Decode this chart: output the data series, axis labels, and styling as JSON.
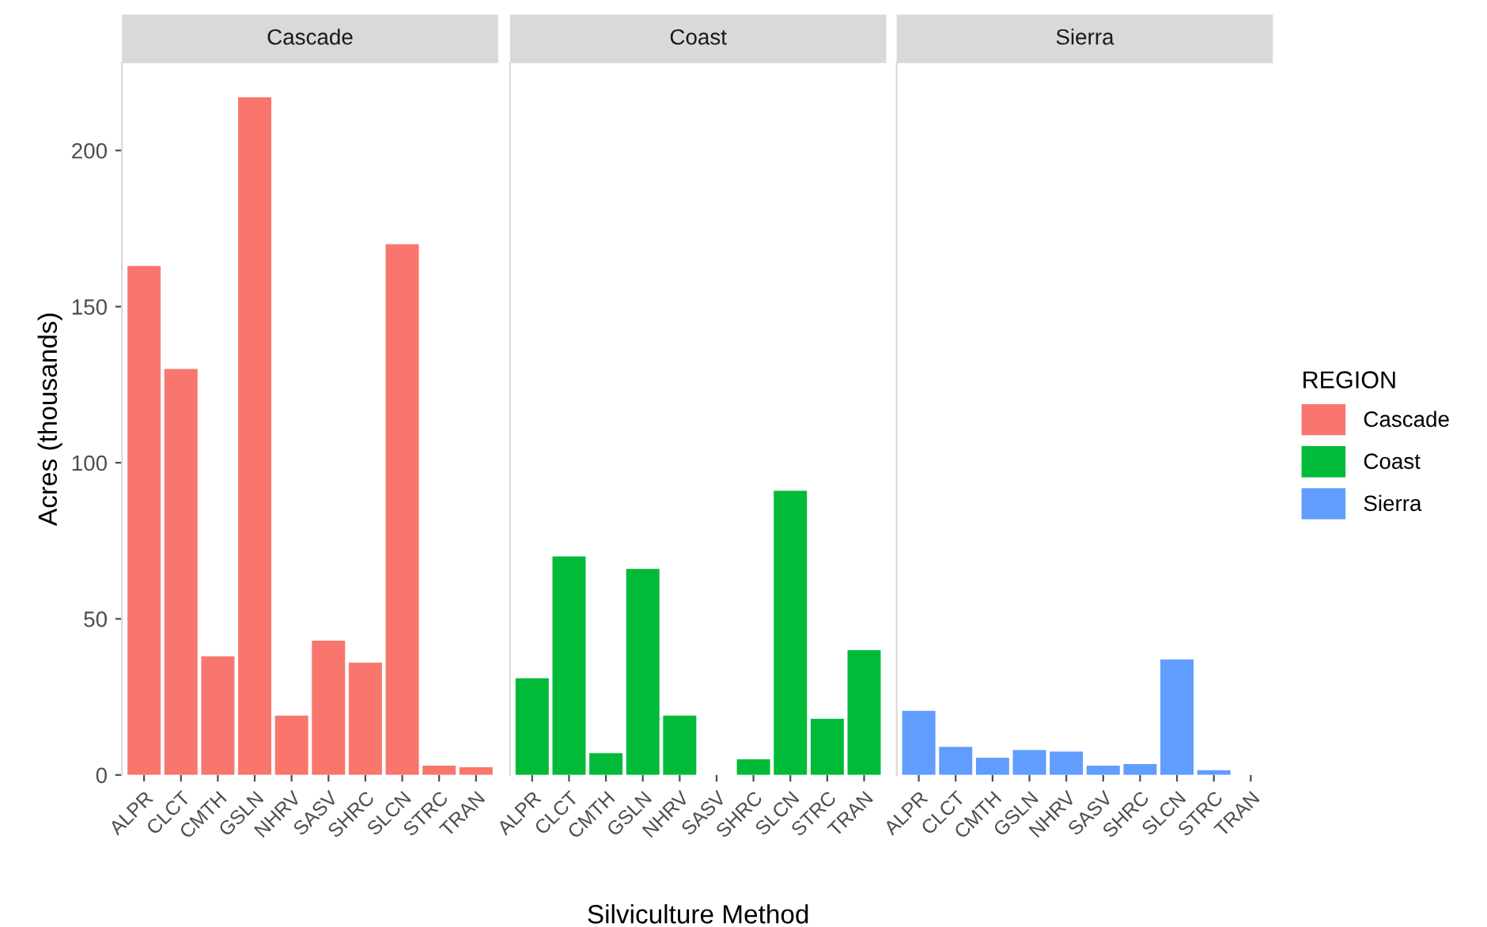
{
  "chart_data": [
    {
      "type": "bar",
      "title": "Cascade",
      "ylabel": "Acres (thousands)",
      "categories": [
        "ALPR",
        "CLCT",
        "CMTH",
        "GSLN",
        "NHRV",
        "SASV",
        "SHRC",
        "SLCN",
        "STRC",
        "TRAN"
      ],
      "series": [
        {
          "name": "Cascade",
          "color": "#f8766d",
          "values": [
            163,
            130,
            38,
            217,
            19,
            43,
            36,
            170,
            3,
            2.5
          ]
        }
      ],
      "ylim": [
        0,
        228
      ],
      "yticks": [
        0,
        50,
        100,
        150,
        200
      ]
    },
    {
      "type": "bar",
      "title": "Coast",
      "xlabel": "Silviculture Method",
      "categories": [
        "ALPR",
        "CLCT",
        "CMTH",
        "GSLN",
        "NHRV",
        "SASV",
        "SHRC",
        "SLCN",
        "STRC",
        "TRAN"
      ],
      "series": [
        {
          "name": "Coast",
          "color": "#00ba38",
          "values": [
            31,
            70,
            7,
            66,
            19,
            0,
            5,
            91,
            18,
            40
          ]
        }
      ],
      "ylim": [
        0,
        228
      ],
      "yticks": [
        0,
        50,
        100,
        150,
        200
      ],
      "tick_labels": "x"
    },
    {
      "type": "bar",
      "title": "Sierra",
      "categories": [
        "ALPR",
        "CLCT",
        "CMTH",
        "GSLN",
        "NHRV",
        "SASV",
        "SHRC",
        "SLCN",
        "STRC",
        "TRAN"
      ],
      "series": [
        {
          "name": "Sierra",
          "color": "#619cff",
          "values": [
            20.5,
            9,
            5.5,
            8,
            7.5,
            3,
            3.5,
            37,
            1.5,
            0
          ]
        }
      ],
      "ylim": [
        0,
        228
      ],
      "yticks": [
        0,
        50,
        100,
        150,
        200
      ],
      "tick_labels": "x",
      "legend": "right",
      "legend_title": "REGION"
    }
  ]
}
